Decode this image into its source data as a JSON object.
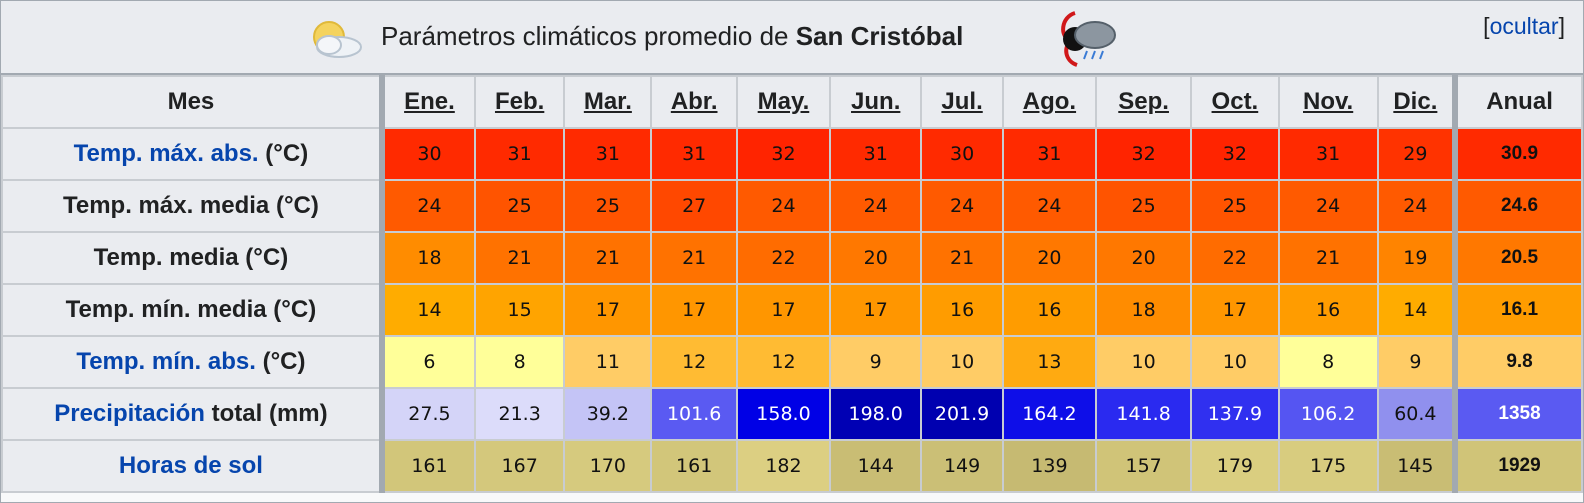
{
  "caption": {
    "title_prefix": "Parámetros climáticos promedio de ",
    "city": "San Cristóbal",
    "toggle_bracket_open": "[",
    "toggle_link": "ocultar",
    "toggle_bracket_close": "]"
  },
  "header": {
    "mes": "Mes",
    "months": [
      "Ene.",
      "Feb.",
      "Mar.",
      "Abr.",
      "May.",
      "Jun.",
      "Jul.",
      "Ago.",
      "Sep.",
      "Oct.",
      "Nov.",
      "Dic."
    ],
    "anual": "Anual"
  },
  "rows": [
    {
      "link": "Temp. máx. abs.",
      "rest": " (°C)",
      "values": [
        "30",
        "31",
        "31",
        "31",
        "32",
        "31",
        "30",
        "31",
        "32",
        "32",
        "31",
        "29"
      ],
      "annual": "30.9",
      "colors": [
        "#ff2a00",
        "#ff2a00",
        "#ff2a00",
        "#ff2a00",
        "#ff2400",
        "#ff2a00",
        "#ff2a00",
        "#ff2a00",
        "#ff2400",
        "#ff2400",
        "#ff2a00",
        "#ff3300"
      ],
      "annual_color": "#ff2a00"
    },
    {
      "link": "",
      "rest": "Temp. máx. media (°C)",
      "values": [
        "24",
        "25",
        "25",
        "27",
        "24",
        "24",
        "24",
        "24",
        "25",
        "25",
        "24",
        "24"
      ],
      "annual": "24.6",
      "colors": [
        "#ff5a00",
        "#ff5400",
        "#ff5400",
        "#ff4800",
        "#ff5a00",
        "#ff5a00",
        "#ff5a00",
        "#ff5a00",
        "#ff5400",
        "#ff5400",
        "#ff5a00",
        "#ff5a00"
      ],
      "annual_color": "#ff5a00"
    },
    {
      "link": "",
      "rest": "Temp. media (°C)",
      "values": [
        "18",
        "21",
        "21",
        "21",
        "22",
        "20",
        "21",
        "20",
        "20",
        "22",
        "21",
        "19"
      ],
      "annual": "20.5",
      "colors": [
        "#ff8c00",
        "#ff7200",
        "#ff7200",
        "#ff7200",
        "#ff6c00",
        "#ff7800",
        "#ff7200",
        "#ff7800",
        "#ff7800",
        "#ff6c00",
        "#ff7200",
        "#ff8400"
      ],
      "annual_color": "#ff7800"
    },
    {
      "link": "",
      "rest": "Temp. mín. media (°C)",
      "values": [
        "14",
        "15",
        "17",
        "17",
        "17",
        "17",
        "16",
        "16",
        "18",
        "17",
        "16",
        "14"
      ],
      "annual": "16.1",
      "colors": [
        "#ffac00",
        "#ffa400",
        "#ff9600",
        "#ff9600",
        "#ff9600",
        "#ff9600",
        "#ff9c00",
        "#ff9c00",
        "#ff8c00",
        "#ff9600",
        "#ff9c00",
        "#ffac00"
      ],
      "annual_color": "#ff9c00"
    },
    {
      "link": "Temp. mín. abs.",
      "rest": " (°C)",
      "values": [
        "6",
        "8",
        "11",
        "12",
        "12",
        "9",
        "10",
        "13",
        "10",
        "10",
        "8",
        "9"
      ],
      "annual": "9.8",
      "colors": [
        "#ffff99",
        "#ffff99",
        "#ffcc66",
        "#ffbb33",
        "#ffbb33",
        "#ffcc66",
        "#ffcc66",
        "#ffaa11",
        "#ffcc66",
        "#ffcc66",
        "#ffff99",
        "#ffcc66"
      ],
      "annual_color": "#ffcc66"
    },
    {
      "link": "Precipitación",
      "rest": " total (mm)",
      "values": [
        "27.5",
        "21.3",
        "39.2",
        "101.6",
        "158.0",
        "198.0",
        "201.9",
        "164.2",
        "141.8",
        "137.9",
        "106.2",
        "60.4"
      ],
      "annual": "1358",
      "colors": [
        "#d4d4f8",
        "#dcdcfa",
        "#c4c4f6",
        "#5a5af2",
        "#0000e6",
        "#0000b4",
        "#0000b0",
        "#0e0ee8",
        "#2a2af0",
        "#3030f0",
        "#5555f2",
        "#9090ee"
      ],
      "annual_color": "#5a5af2"
    },
    {
      "link": "Horas de sol",
      "rest": "",
      "values": [
        "161",
        "167",
        "170",
        "161",
        "182",
        "144",
        "149",
        "139",
        "157",
        "179",
        "175",
        "145"
      ],
      "annual": "1929",
      "colors": [
        "#d2c67a",
        "#d4c87c",
        "#d6ca7e",
        "#d2c67a",
        "#dccf82",
        "#c9bd74",
        "#cbbf76",
        "#c6ba72",
        "#d0c478",
        "#dace80",
        "#d8cc7f",
        "#c9bd74"
      ],
      "annual_color": "#d0c478"
    }
  ],
  "icons": {
    "left": "partly-sunny-icon",
    "right": "hurricane-rain-icon"
  }
}
